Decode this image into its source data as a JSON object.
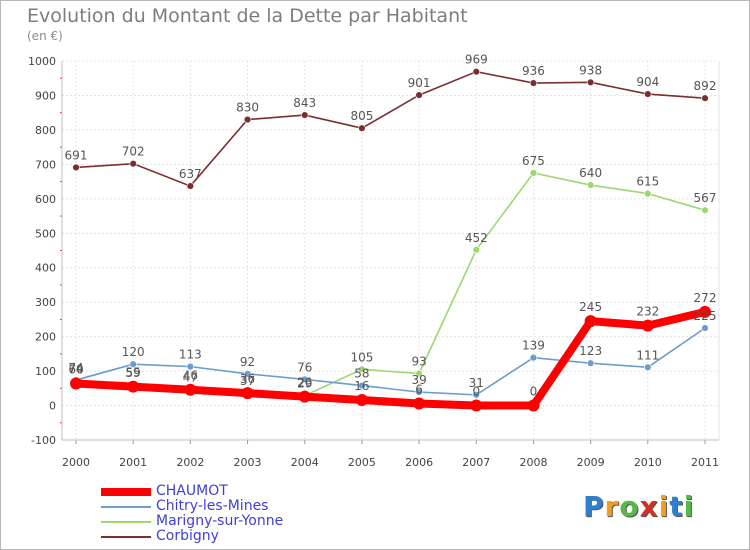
{
  "chart_data": {
    "type": "line",
    "title": "Evolution du Montant de la Dette par Habitant",
    "ylabel": "(en €)",
    "ylim": [
      -100,
      1000
    ],
    "yticks": [
      "-100",
      "0",
      "100",
      "200",
      "300",
      "400",
      "500",
      "600",
      "700",
      "800",
      "900",
      "1000"
    ],
    "x": [
      "2000",
      "2001",
      "2002",
      "2003",
      "2004",
      "2005",
      "2006",
      "2007",
      "2008",
      "2009",
      "2010",
      "2011"
    ],
    "series": [
      {
        "name": "Corbigny",
        "color": "#7a2e2e",
        "values": [
          691,
          702,
          637,
          830,
          843,
          805,
          901,
          969,
          936,
          938,
          904,
          892
        ],
        "labels": [
          "691",
          "702",
          "637",
          "830",
          "843",
          "805",
          "901",
          "969",
          "936",
          "938",
          "904",
          "892"
        ]
      },
      {
        "name": "Marigny-sur-Yonne",
        "color": "#9ed672",
        "values": [
          70,
          59,
          47,
          37,
          29,
          105,
          93,
          452,
          675,
          640,
          615,
          567
        ],
        "labels": [
          "70",
          "59",
          "47",
          "37",
          "29",
          "105",
          "93",
          "452",
          "675",
          "640",
          "615",
          "567"
        ]
      },
      {
        "name": "Chitry-les-Mines",
        "color": "#6a9ccc",
        "values": [
          74,
          120,
          113,
          92,
          76,
          58,
          39,
          31,
          139,
          123,
          111,
          225
        ],
        "labels": [
          "74",
          "120",
          "113",
          "92",
          "76",
          "58",
          "39",
          "31",
          "139",
          "123",
          "111",
          "225"
        ]
      },
      {
        "name": "CHAUMOT",
        "color": "#ff0000",
        "values": [
          64,
          55,
          46,
          36,
          26,
          16,
          6,
          0,
          0,
          245,
          232,
          272
        ],
        "labels": [
          "64",
          "55",
          "46",
          "36",
          "26",
          "16",
          "6",
          "0",
          "0",
          "245",
          "232",
          "272"
        ]
      }
    ],
    "legend": [
      {
        "name": "CHAUMOT",
        "color": "#ff0000"
      },
      {
        "name": "Chitry-les-Mines",
        "color": "#6a9ccc"
      },
      {
        "name": "Marigny-sur-Yonne",
        "color": "#9ed672"
      },
      {
        "name": "Corbigny",
        "color": "#7a2e2e"
      }
    ]
  },
  "logo": {
    "letters": [
      "P",
      "r",
      "o",
      "x",
      "i",
      "t",
      "i"
    ],
    "colors": [
      "#2f7fcf",
      "#f0a020",
      "#58b848",
      "#d83020",
      "#f0a020",
      "#2f7fcf",
      "#58b848"
    ]
  }
}
